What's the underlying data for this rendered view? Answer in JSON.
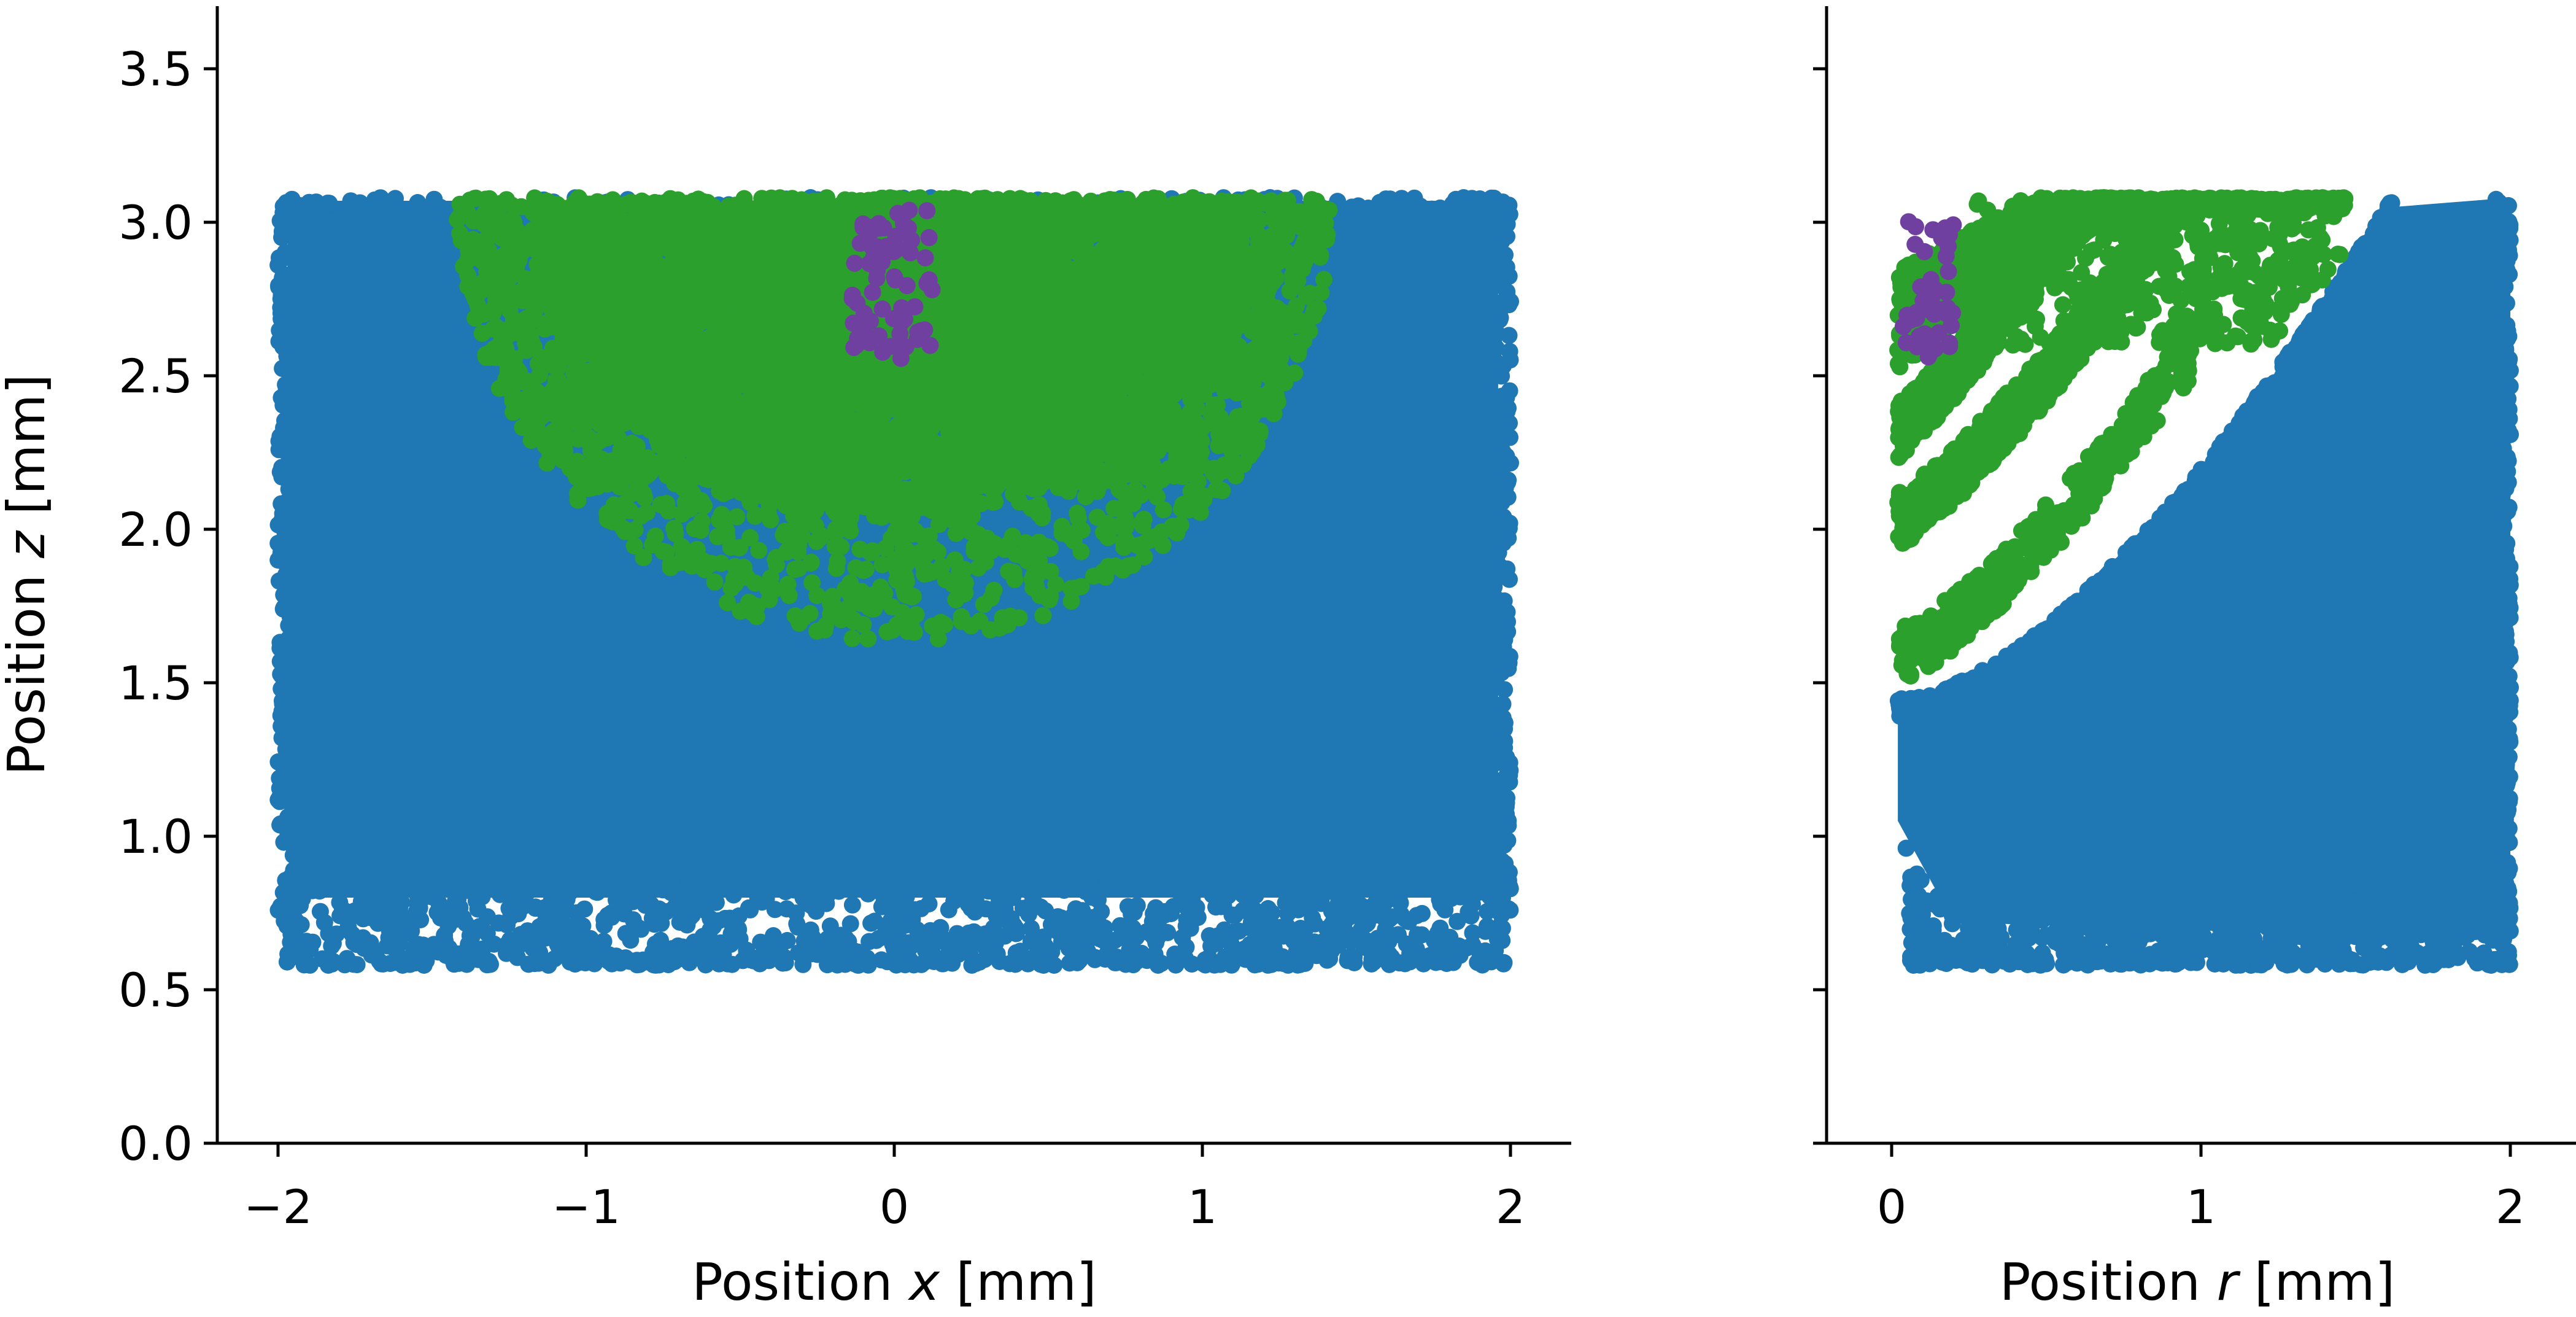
{
  "chart_data": [
    {
      "type": "scatter",
      "title": "",
      "xlabel": {
        "pre": "Position ",
        "var": "x",
        "post": " [mm]"
      },
      "ylabel": {
        "pre": "Position ",
        "var": "z",
        "post": " [mm]"
      },
      "xlim": [
        -2.2,
        2.2
      ],
      "ylim": [
        0,
        3.7
      ],
      "xticks": [
        "−2",
        "−1",
        "0",
        "1",
        "2"
      ],
      "xtick_values": [
        -2,
        -1,
        0,
        1,
        2
      ],
      "yticks": [
        "0.0",
        "0.5",
        "1.0",
        "1.5",
        "2.0",
        "2.5",
        "3.0",
        "3.5"
      ],
      "ytick_values": [
        0,
        0.5,
        1.0,
        1.5,
        2.0,
        2.5,
        3.0,
        3.5
      ],
      "grid": false,
      "legend": "none",
      "series": [
        {
          "color": "#1f77b4",
          "region": "rectangle x ∈ [-2, 2], z ∈ [0.6, 3.08]"
        },
        {
          "color": "#2ca02c",
          "region": "half-disc centred at x = 0, z = 3.08, radius ≈ 1.4 mm"
        },
        {
          "color": "#7040a0",
          "region": "narrow column x ∈ [-0.15, 0.15], z ∈ [2.55, 3.05]"
        }
      ]
    },
    {
      "type": "scatter",
      "title": "",
      "xlabel": {
        "pre": "Position ",
        "var": "r",
        "post": " [mm]"
      },
      "ylabel": "",
      "xlim": [
        -0.22,
        2.22
      ],
      "ylim": [
        0,
        3.7
      ],
      "xticks": [
        "0",
        "1",
        "2"
      ],
      "xtick_values": [
        0,
        1,
        2
      ],
      "yticks": [],
      "ytick_values": [
        0,
        0.5,
        1.0,
        1.5,
        2.0,
        2.5,
        3.0,
        3.5
      ],
      "grid": false,
      "legend": "none",
      "series": [
        {
          "color": "#1f77b4",
          "region": "r ∈ [0, 2], z from 0.6 up to a curved boundary rising from 1.5 at r = 0.1 to 3.08 at r = 1.6"
        },
        {
          "color": "#2ca02c",
          "region": "curved bands between r = 0 and r = 1.45, z from 1.6 to 3.08"
        },
        {
          "color": "#7040a0",
          "region": "r ∈ [0, 0.2], z ∈ [2.55, 3.05]"
        }
      ]
    }
  ]
}
